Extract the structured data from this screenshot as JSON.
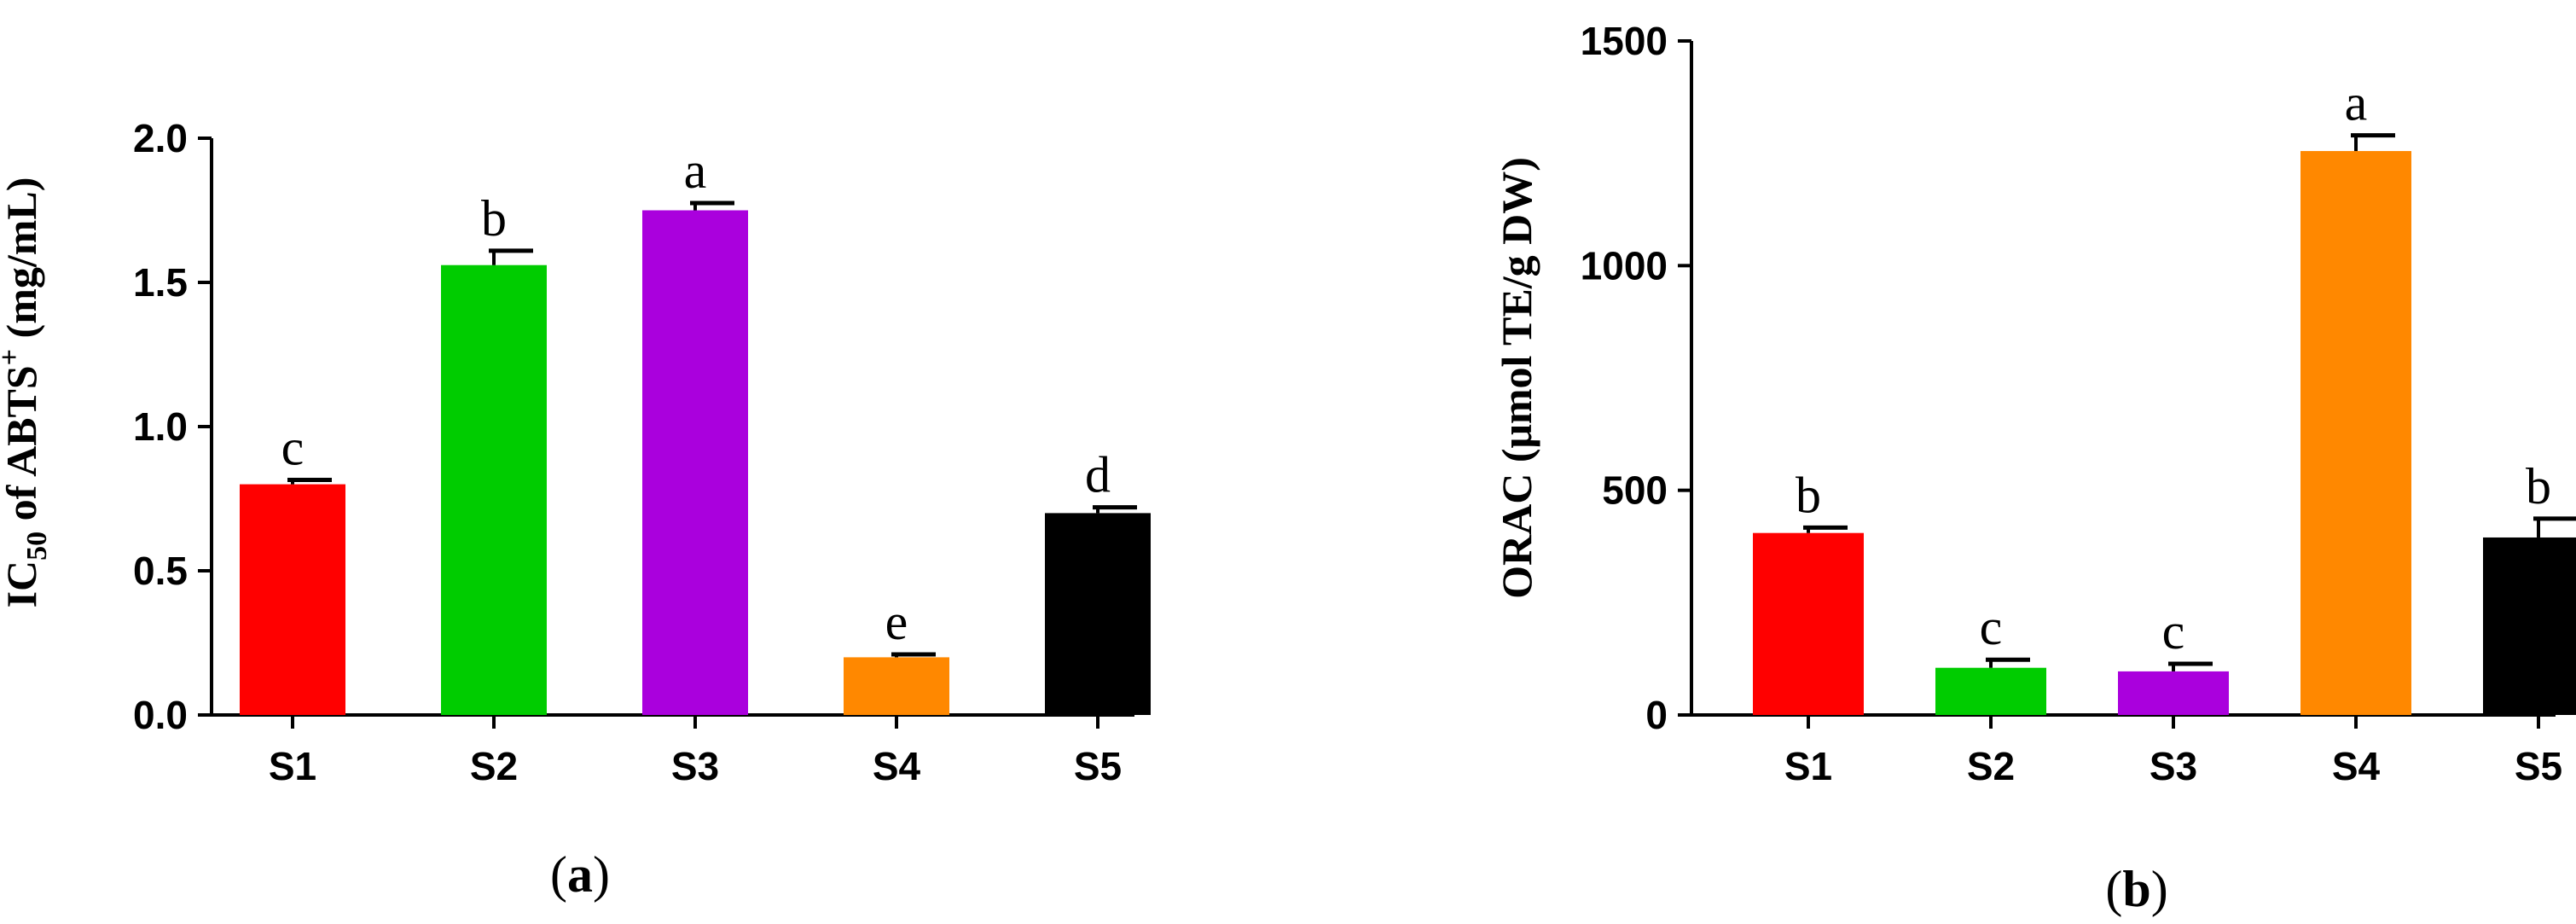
{
  "chart_data": [
    {
      "type": "bar",
      "panel_label": "a",
      "ylabel": {
        "prefix": "IC",
        "subscript": "50",
        "middle": " of ABTS",
        "superscript": "+",
        "suffix": " (mg/mL)"
      },
      "ylim": [
        0,
        2.0
      ],
      "yticks": [
        "0.0",
        "0.5",
        "1.0",
        "1.5",
        "2.0"
      ],
      "categories": [
        "S1",
        "S2",
        "S3",
        "S4",
        "S5"
      ],
      "values": [
        0.8,
        1.56,
        1.75,
        0.2,
        0.7
      ],
      "errors": [
        0.015,
        0.05,
        0.025,
        0.01,
        0.02
      ],
      "significance": [
        "c",
        "b",
        "a",
        "e",
        "d"
      ],
      "colors": [
        "#ff0000",
        "#00cc00",
        "#aa00dd",
        "#ff8800",
        "#000000"
      ],
      "grid": false
    },
    {
      "type": "bar",
      "panel_label": "b",
      "ylabel": {
        "prefix": "ORAC (",
        "subscript": "",
        "middle": "μmol TE/g DW",
        "superscript": "",
        "suffix": ")"
      },
      "ylim": [
        0,
        1500
      ],
      "yticks": [
        "0",
        "500",
        "1000",
        "1500"
      ],
      "categories": [
        "S1",
        "S2",
        "S3",
        "S4",
        "S5"
      ],
      "values": [
        405,
        105,
        97,
        1255,
        395
      ],
      "errors": [
        12,
        18,
        17,
        35,
        42
      ],
      "significance": [
        "b",
        "c",
        "c",
        "a",
        "b"
      ],
      "colors": [
        "#ff0000",
        "#00cc00",
        "#aa00dd",
        "#ff8800",
        "#000000"
      ],
      "grid": false
    }
  ]
}
